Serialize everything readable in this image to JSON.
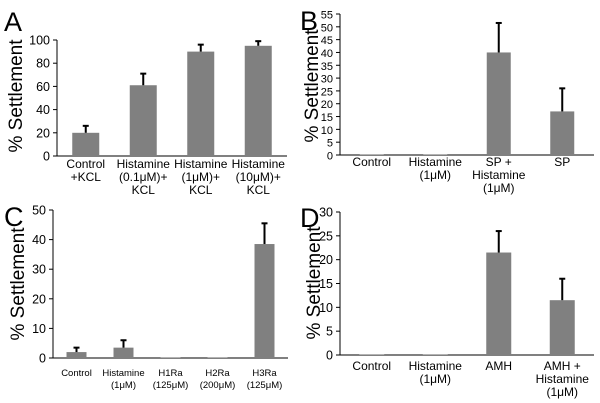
{
  "chart_data": [
    {
      "panel": "A",
      "type": "bar",
      "ylabel": "% Settlement",
      "ylim": [
        0,
        100
      ],
      "yticks": [
        0,
        20,
        40,
        60,
        80,
        100
      ],
      "categories": [
        [
          "Control",
          "+KCL"
        ],
        [
          "Histamine",
          "(0.1μM)+",
          "KCL"
        ],
        [
          "Histamine",
          "(1μM)+",
          "KCL"
        ],
        [
          "Histamine",
          "(10μM)+",
          "KCL"
        ]
      ],
      "values": [
        20,
        61,
        90,
        95
      ],
      "errors": [
        6,
        10,
        6,
        4
      ],
      "bar_color": "#808080"
    },
    {
      "panel": "B",
      "type": "bar",
      "ylabel": "% Settlement",
      "ylim": [
        0,
        55
      ],
      "yticks": [
        0,
        5,
        10,
        15,
        20,
        25,
        30,
        35,
        40,
        45,
        50,
        55
      ],
      "categories": [
        [
          "Control"
        ],
        [
          "Histamine",
          "(1μM)"
        ],
        [
          "SP +",
          "Histamine",
          "(1μM)"
        ],
        [
          "SP"
        ]
      ],
      "values": [
        0,
        0,
        40,
        17
      ],
      "errors": [
        0,
        0,
        11.5,
        9
      ],
      "bar_color": "#808080"
    },
    {
      "panel": "C",
      "type": "bar",
      "ylabel": "% Settlement",
      "ylim": [
        0,
        50
      ],
      "yticks": [
        0,
        10,
        20,
        30,
        40,
        50
      ],
      "categories": [
        [
          "Control"
        ],
        [
          "Histamine",
          "(1μM)"
        ],
        [
          "H1Ra",
          "(125μM)"
        ],
        [
          "H2Ra",
          "(200μM)"
        ],
        [
          "H3Ra",
          "(125μM)"
        ]
      ],
      "values": [
        2,
        3.5,
        0,
        0,
        38.5
      ],
      "errors": [
        1.5,
        2.5,
        0,
        0,
        7
      ],
      "bar_color": "#808080"
    },
    {
      "panel": "D",
      "type": "bar",
      "ylabel": "% Settlement",
      "ylim": [
        0,
        30
      ],
      "yticks": [
        0,
        5,
        10,
        15,
        20,
        25,
        30
      ],
      "categories": [
        [
          "Control"
        ],
        [
          "Histamine",
          "(1μM)"
        ],
        [
          "AMH"
        ],
        [
          "AMH +",
          "Histamine",
          "(1μM)"
        ]
      ],
      "values": [
        0,
        0,
        21.5,
        11.5
      ],
      "errors": [
        0,
        0,
        4.5,
        4.5
      ],
      "bar_color": "#808080"
    }
  ]
}
